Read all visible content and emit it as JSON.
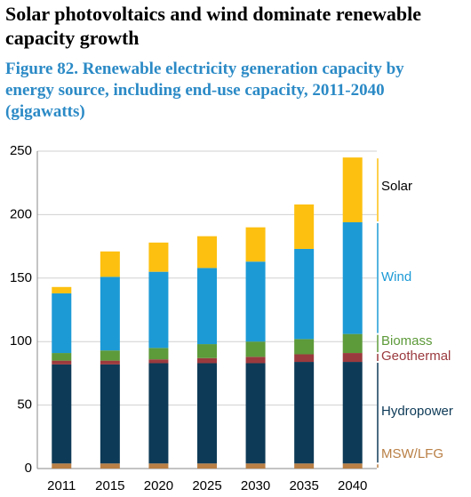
{
  "header": {
    "title": "Solar photovoltaics and wind dominate renewable capacity growth"
  },
  "chart_data": {
    "type": "stacked-bar",
    "title": "Figure 82. Renewable electricity generation capacity by energy source, including end-use capacity, 2011-2040 (gigawatts)",
    "categories": [
      "2011",
      "2015",
      "2020",
      "2025",
      "2030",
      "2035",
      "2040"
    ],
    "series": [
      {
        "name": "MSW/LFG",
        "color": "#b97f45",
        "label_color": "#b97f45",
        "values": [
          4,
          4,
          4,
          4,
          4,
          4,
          4
        ]
      },
      {
        "name": "Hydropower",
        "color": "#0d3a57",
        "label_color": "#0d3a57",
        "values": [
          78,
          78,
          79,
          79,
          79,
          80,
          80
        ]
      },
      {
        "name": "Geothermal",
        "color": "#9b3a3e",
        "label_color": "#9b3a3e",
        "values": [
          3,
          3,
          3,
          4,
          5,
          6,
          7
        ]
      },
      {
        "name": "Biomass",
        "color": "#5d9a3a",
        "label_color": "#5d9a3a",
        "values": [
          6,
          8,
          9,
          11,
          12,
          12,
          15
        ]
      },
      {
        "name": "Wind",
        "color": "#1c9ad6",
        "label_color": "#1c9ad6",
        "values": [
          47,
          58,
          60,
          60,
          63,
          71,
          88
        ]
      },
      {
        "name": "Solar",
        "color": "#fdc010",
        "label_color": "#000000",
        "values": [
          5,
          20,
          23,
          25,
          27,
          35,
          51
        ]
      }
    ],
    "ylim": [
      0,
      250
    ],
    "yticks": [
      0,
      50,
      100,
      150,
      200,
      250
    ],
    "grid": true
  }
}
